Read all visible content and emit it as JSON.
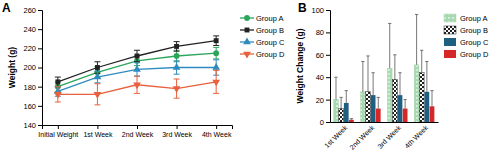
{
  "chart_data": [
    {
      "type": "line",
      "title": "A",
      "y_label": "Weight (g)",
      "categories": [
        "Initial Weight",
        "1st Week",
        "2nd Week",
        "3rd Week",
        "4th Week"
      ],
      "ylim": [
        140,
        260
      ],
      "yticks": [
        140,
        160,
        180,
        200,
        220,
        240,
        260
      ],
      "legend": "right",
      "series": [
        {
          "name": "Group A",
          "color": "#2aa55a",
          "marker": "circle",
          "values": [
            180,
            195,
            207,
            212,
            215
          ],
          "errors": [
            5,
            6,
            5,
            6,
            6
          ]
        },
        {
          "name": "Group B",
          "color": "#222222",
          "marker": "square",
          "values": [
            185,
            200,
            212,
            222,
            228
          ],
          "errors": [
            5,
            6,
            6,
            5,
            5
          ]
        },
        {
          "name": "Group C",
          "color": "#2e8bc0",
          "marker": "triangle",
          "values": [
            175,
            190,
            198,
            200,
            200
          ],
          "errors": [
            5,
            6,
            7,
            7,
            8
          ]
        },
        {
          "name": "Group D",
          "color": "#e8603c",
          "marker": "triangle-down",
          "values": [
            172,
            172,
            182,
            178,
            185
          ],
          "errors": [
            8,
            11,
            9,
            10,
            12
          ]
        }
      ]
    },
    {
      "type": "bar",
      "title": "B",
      "y_label": "Weight Change (g)",
      "categories": [
        "1st Week",
        "2nd Week",
        "3rd Week",
        "4th Week"
      ],
      "ylim": [
        0,
        100
      ],
      "yticks": [
        0,
        20,
        40,
        60,
        80,
        100
      ],
      "legend": "right",
      "series": [
        {
          "name": "Group A",
          "color": "#a8d8b0",
          "values": [
            20,
            27,
            48,
            51
          ],
          "errors": [
            20,
            27,
            40,
            45
          ]
        },
        {
          "name": "Group B",
          "color": "#222222",
          "values": [
            12,
            27,
            38,
            44
          ],
          "errors": [
            10,
            32,
            22,
            20
          ]
        },
        {
          "name": "Group C",
          "color": "#1f5f80",
          "values": [
            17,
            24,
            24,
            27
          ],
          "errors": [
            11,
            20,
            20,
            27
          ]
        },
        {
          "name": "Group D",
          "color": "#d62728",
          "values": [
            2,
            12,
            12,
            14
          ],
          "errors": [
            1,
            10,
            8,
            14
          ]
        }
      ]
    }
  ]
}
